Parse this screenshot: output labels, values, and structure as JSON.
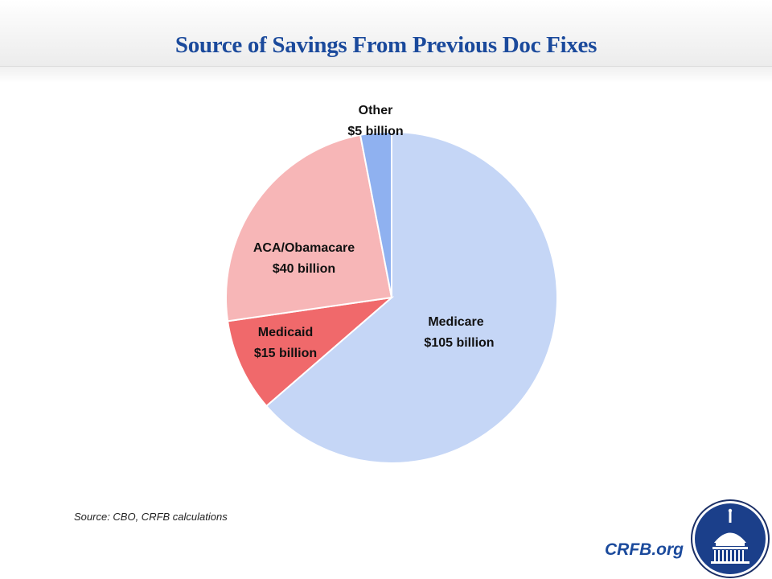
{
  "chart_data": {
    "type": "pie",
    "title": "Source of Savings From Previous Doc Fixes",
    "unit": "billion USD",
    "start_angle": "12 o'clock, clockwise",
    "slices": [
      {
        "name": "Medicare",
        "value": 105,
        "value_label": "$105 billion",
        "color": "#c5d6f6"
      },
      {
        "name": "Medicaid",
        "value": 15,
        "value_label": "$15 billion",
        "color": "#f0696b"
      },
      {
        "name": "ACA/Obamacare",
        "value": 40,
        "value_label": "$40 billion",
        "color": "#f7b6b7"
      },
      {
        "name": "Other",
        "value": 5,
        "value_label": "$5 billion",
        "color": "#8fb1f0"
      }
    ]
  },
  "footer": {
    "source": "Source: CBO, CRFB calculations",
    "brand": "CRFB.org"
  },
  "colors": {
    "title": "#1b4a9c",
    "logo_fill": "#1b3f8a"
  }
}
